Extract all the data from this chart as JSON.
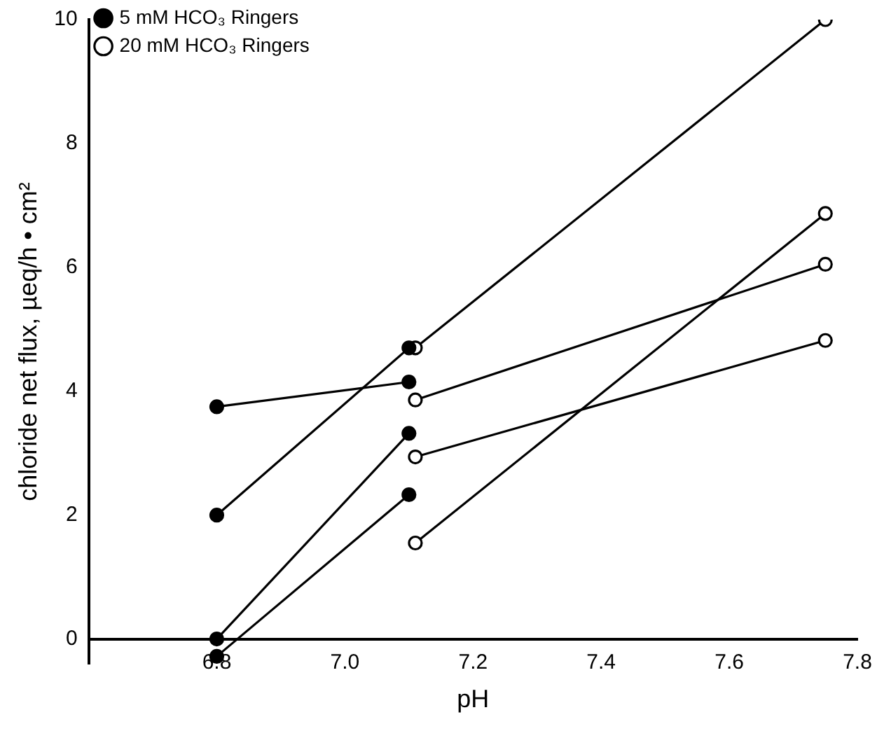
{
  "chart_data": {
    "type": "scatter",
    "xlabel": "pH",
    "ylabel": "chloride net flux, µeq/h • cm²",
    "xlim": [
      6.6,
      7.8
    ],
    "xticks": [
      6.8,
      {
        "value": 7,
        "label": "7.0"
      },
      7.2,
      7.4,
      7.6,
      7.8
    ],
    "ylim": [
      -0.4,
      10
    ],
    "yticks": [
      0,
      2,
      4,
      6,
      8,
      10
    ],
    "grid": false,
    "legend": "top left",
    "marker": "circle",
    "series": [
      {
        "name": "5 mM HCO₃ Ringers",
        "color": "#000000",
        "x": [
          6.8,
          6.8,
          6.8,
          6.8,
          7.1,
          7.1,
          7.1,
          7.1
        ],
        "values": [
          3.75,
          2.0,
          0.0,
          -0.28,
          4.15,
          4.7,
          3.32,
          2.33
        ]
      },
      {
        "name": "20 mM HCO₃ Ringers",
        "color": "#000000",
        "x": [
          7.11,
          7.11,
          7.11,
          7.11,
          7.75,
          7.75,
          7.75,
          7.75
        ],
        "values": [
          4.7,
          3.86,
          2.94,
          1.55,
          10.0,
          6.05,
          4.82,
          6.87
        ]
      },
      {
        "type": "line",
        "marker": "none",
        "color": "#000000",
        "x": [
          6.8,
          7.1
        ],
        "values": [
          3.75,
          4.15
        ]
      },
      {
        "type": "line",
        "marker": "none",
        "color": "#000000",
        "x": [
          6.8,
          7.1,
          7.11,
          7.75
        ],
        "values": [
          2.0,
          4.7,
          4.7,
          10.0
        ]
      },
      {
        "type": "line",
        "marker": "none",
        "color": "#000000",
        "x": [
          6.8,
          7.1
        ],
        "values": [
          0.0,
          3.32
        ]
      },
      {
        "type": "line",
        "marker": "none",
        "color": "#000000",
        "x": [
          6.8,
          7.1
        ],
        "values": [
          -0.28,
          2.33
        ]
      },
      {
        "type": "line",
        "marker": "none",
        "color": "#000000",
        "x": [
          7.11,
          7.75
        ],
        "values": [
          3.86,
          6.05
        ]
      },
      {
        "type": "line",
        "marker": "none",
        "color": "#000000",
        "x": [
          7.11,
          7.75
        ],
        "values": [
          2.94,
          4.82
        ]
      },
      {
        "type": "line",
        "marker": "none",
        "color": "#000000",
        "x": [
          7.11,
          7.75
        ],
        "values": [
          1.55,
          6.87
        ]
      }
    ]
  }
}
